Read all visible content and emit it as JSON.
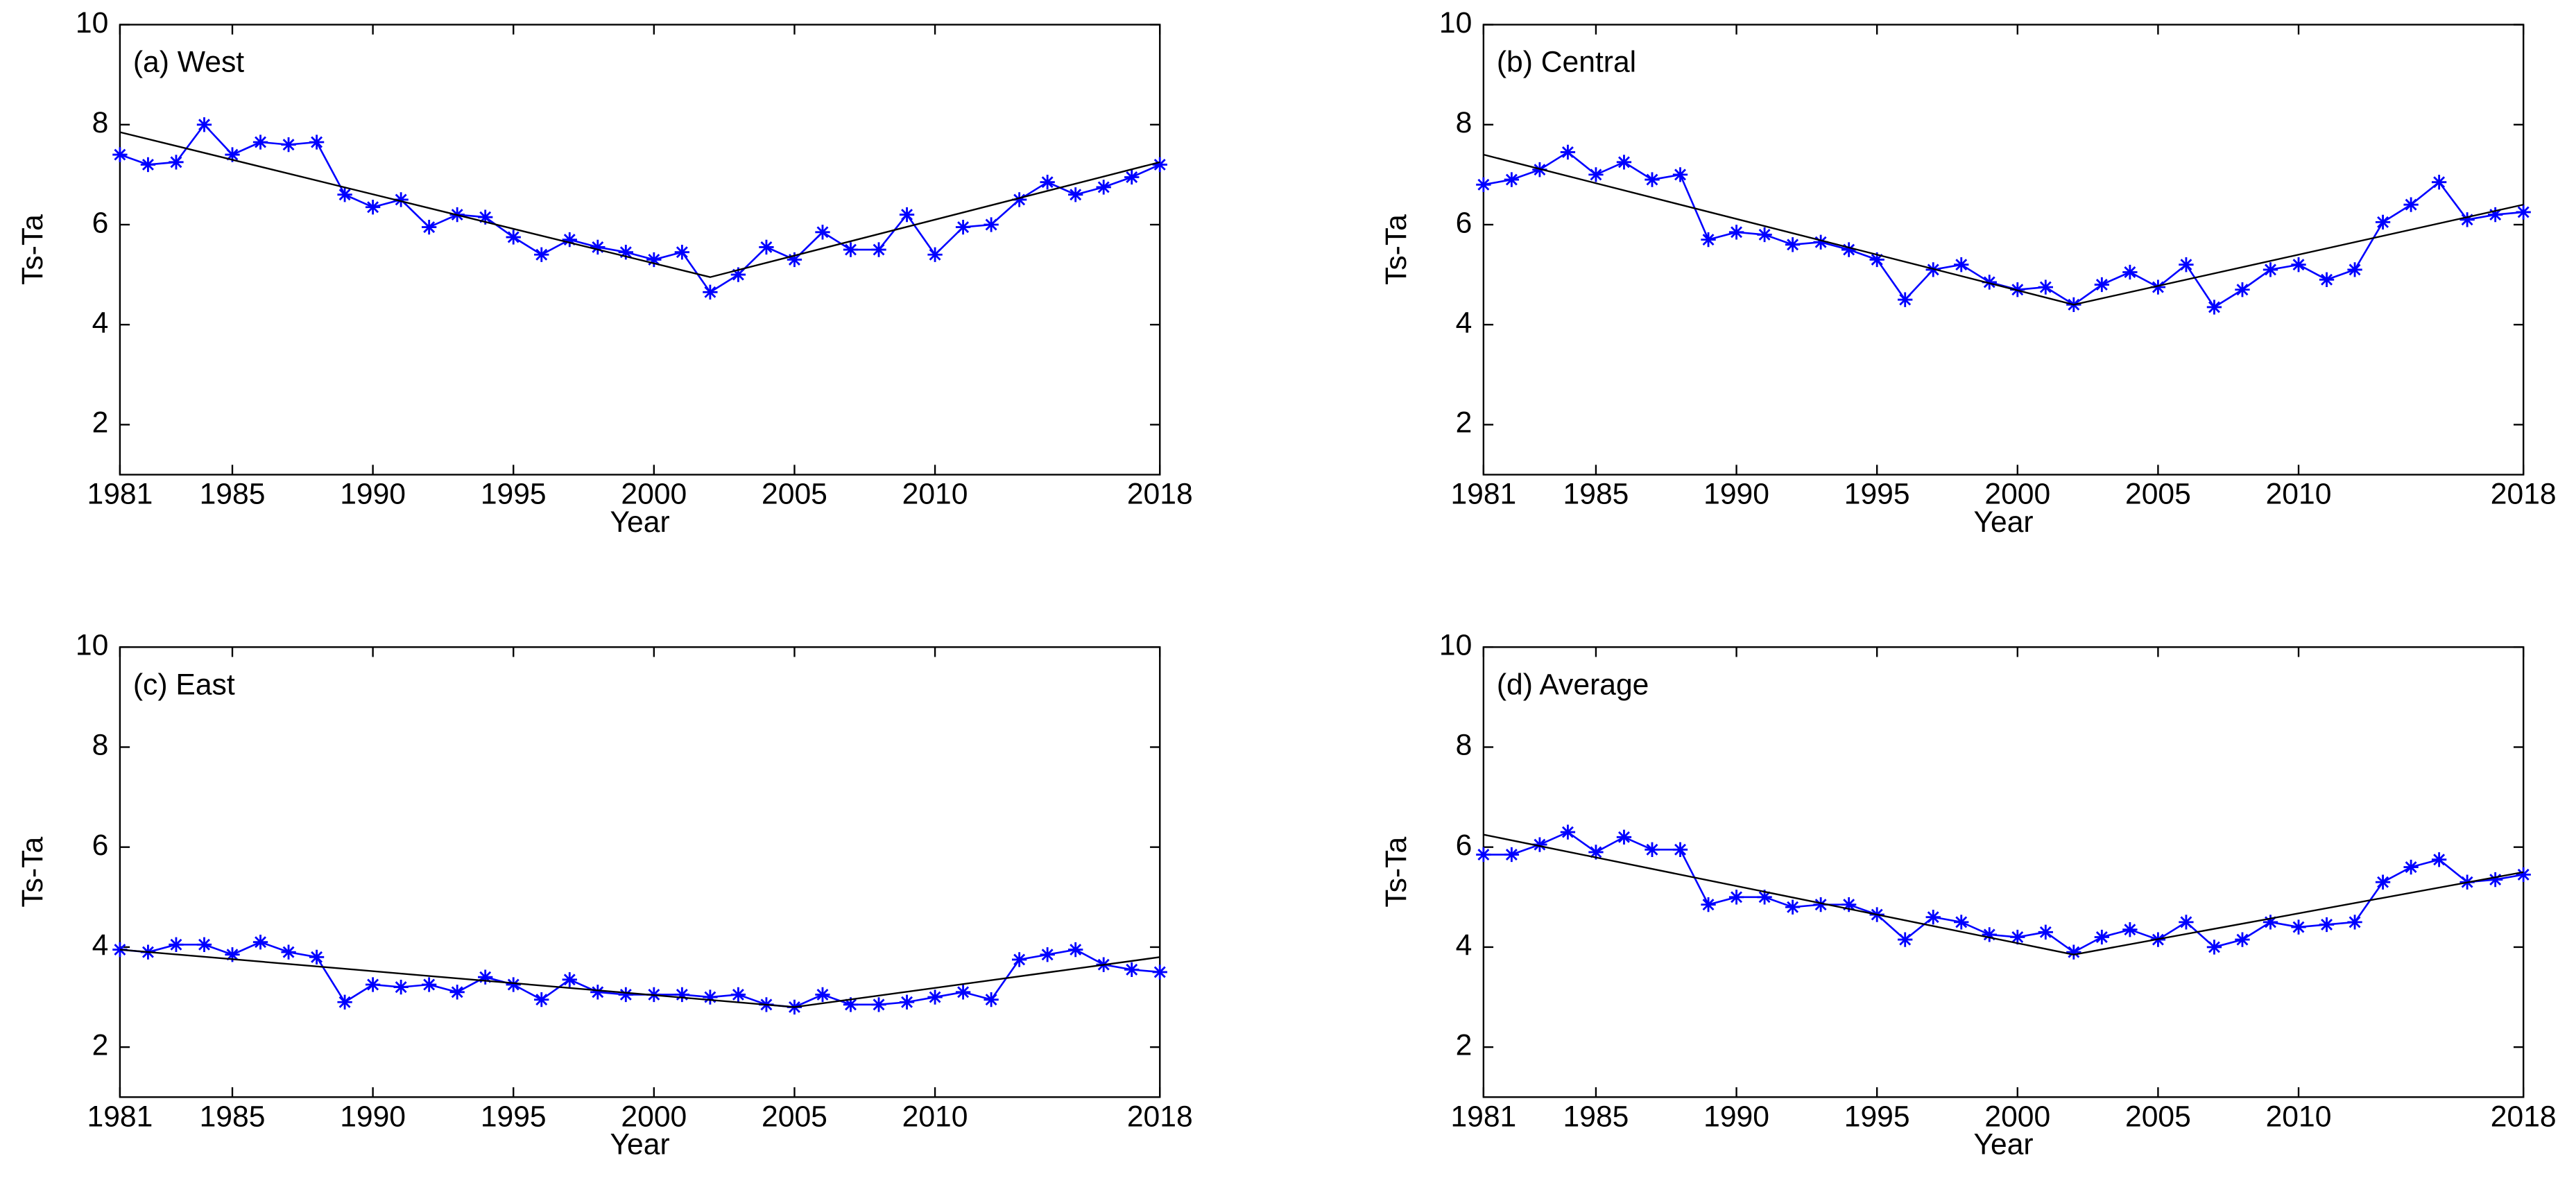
{
  "chart_data": [
    {
      "type": "line",
      "title": "(a) West",
      "xlabel": "Year",
      "ylabel": "Ts-Ta",
      "x": [
        1981,
        1982,
        1983,
        1984,
        1985,
        1986,
        1987,
        1988,
        1989,
        1990,
        1991,
        1992,
        1993,
        1994,
        1995,
        1996,
        1997,
        1998,
        1999,
        2000,
        2001,
        2002,
        2003,
        2004,
        2005,
        2006,
        2007,
        2008,
        2009,
        2010,
        2011,
        2012,
        2013,
        2014,
        2015,
        2016,
        2017,
        2018
      ],
      "series": [
        {
          "color": "#0000ff",
          "marker": "star",
          "values": [
            7.4,
            7.2,
            7.25,
            8.0,
            7.4,
            7.65,
            7.6,
            7.65,
            6.6,
            6.35,
            6.5,
            5.95,
            6.2,
            6.15,
            5.75,
            5.4,
            5.7,
            5.55,
            5.45,
            5.3,
            5.45,
            4.65,
            5.0,
            5.55,
            5.3,
            5.85,
            5.5,
            5.5,
            6.2,
            5.4,
            5.95,
            6.0,
            6.5,
            6.85,
            6.6,
            6.75,
            6.95,
            7.2
          ]
        },
        {
          "color": "#000000",
          "x": [
            1981,
            2002,
            2018
          ],
          "values": [
            7.85,
            4.95,
            7.25
          ]
        }
      ],
      "xlim": [
        1981,
        2018
      ],
      "xticks": [
        1981,
        1985,
        1990,
        1995,
        2000,
        2005,
        2010,
        2018
      ],
      "ylim": [
        1,
        10
      ],
      "yticks": [
        2,
        4,
        6,
        8,
        10
      ]
    },
    {
      "type": "line",
      "title": "(b) Central",
      "xlabel": "Year",
      "ylabel": "Ts-Ta",
      "x": [
        1981,
        1982,
        1983,
        1984,
        1985,
        1986,
        1987,
        1988,
        1989,
        1990,
        1991,
        1992,
        1993,
        1994,
        1995,
        1996,
        1997,
        1998,
        1999,
        2000,
        2001,
        2002,
        2003,
        2004,
        2005,
        2006,
        2007,
        2008,
        2009,
        2010,
        2011,
        2012,
        2013,
        2014,
        2015,
        2016,
        2017,
        2018
      ],
      "series": [
        {
          "color": "#0000ff",
          "marker": "star",
          "values": [
            6.8,
            6.9,
            7.1,
            7.45,
            7.0,
            7.25,
            6.9,
            7.0,
            5.7,
            5.85,
            5.8,
            5.6,
            5.65,
            5.5,
            5.3,
            4.5,
            5.1,
            5.2,
            4.85,
            4.7,
            4.75,
            4.4,
            4.8,
            5.05,
            4.75,
            5.2,
            4.35,
            4.7,
            5.1,
            5.2,
            4.9,
            5.1,
            6.05,
            6.4,
            6.85,
            6.1,
            6.2,
            6.25
          ]
        },
        {
          "color": "#000000",
          "x": [
            1981,
            2002,
            2018
          ],
          "values": [
            7.4,
            4.4,
            6.4
          ]
        }
      ],
      "xlim": [
        1981,
        2018
      ],
      "xticks": [
        1981,
        1985,
        1990,
        1995,
        2000,
        2005,
        2010,
        2018
      ],
      "ylim": [
        1,
        10
      ],
      "yticks": [
        2,
        4,
        6,
        8,
        10
      ]
    },
    {
      "type": "line",
      "title": "(c) East",
      "xlabel": "Year",
      "ylabel": "Ts-Ta",
      "x": [
        1981,
        1982,
        1983,
        1984,
        1985,
        1986,
        1987,
        1988,
        1989,
        1990,
        1991,
        1992,
        1993,
        1994,
        1995,
        1996,
        1997,
        1998,
        1999,
        2000,
        2001,
        2002,
        2003,
        2004,
        2005,
        2006,
        2007,
        2008,
        2009,
        2010,
        2011,
        2012,
        2013,
        2014,
        2015,
        2016,
        2017,
        2018
      ],
      "series": [
        {
          "color": "#0000ff",
          "marker": "star",
          "values": [
            3.95,
            3.9,
            4.05,
            4.05,
            3.85,
            4.1,
            3.9,
            3.8,
            2.9,
            3.25,
            3.2,
            3.25,
            3.1,
            3.4,
            3.25,
            2.95,
            3.35,
            3.1,
            3.05,
            3.05,
            3.05,
            3.0,
            3.05,
            2.85,
            2.8,
            3.05,
            2.85,
            2.85,
            2.9,
            3.0,
            3.1,
            2.95,
            3.75,
            3.85,
            3.95,
            3.65,
            3.55,
            3.5
          ]
        },
        {
          "color": "#000000",
          "x": [
            1981,
            2005,
            2018
          ],
          "values": [
            3.95,
            2.8,
            3.8
          ]
        }
      ],
      "xlim": [
        1981,
        2018
      ],
      "xticks": [
        1981,
        1985,
        1990,
        1995,
        2000,
        2005,
        2010,
        2018
      ],
      "ylim": [
        1,
        10
      ],
      "yticks": [
        2,
        4,
        6,
        8,
        10
      ]
    },
    {
      "type": "line",
      "title": "(d) Average",
      "xlabel": "Year",
      "ylabel": "Ts-Ta",
      "x": [
        1981,
        1982,
        1983,
        1984,
        1985,
        1986,
        1987,
        1988,
        1989,
        1990,
        1991,
        1992,
        1993,
        1994,
        1995,
        1996,
        1997,
        1998,
        1999,
        2000,
        2001,
        2002,
        2003,
        2004,
        2005,
        2006,
        2007,
        2008,
        2009,
        2010,
        2011,
        2012,
        2013,
        2014,
        2015,
        2016,
        2017,
        2018
      ],
      "series": [
        {
          "color": "#0000ff",
          "marker": "star",
          "values": [
            5.85,
            5.85,
            6.05,
            6.3,
            5.9,
            6.2,
            5.95,
            5.95,
            4.85,
            5.0,
            5.0,
            4.8,
            4.85,
            4.85,
            4.65,
            4.15,
            4.6,
            4.5,
            4.25,
            4.2,
            4.3,
            3.9,
            4.2,
            4.35,
            4.15,
            4.5,
            4.0,
            4.15,
            4.5,
            4.4,
            4.45,
            4.5,
            5.3,
            5.6,
            5.75,
            5.3,
            5.35,
            5.45
          ]
        },
        {
          "color": "#000000",
          "x": [
            1981,
            2002,
            2018
          ],
          "values": [
            6.25,
            3.85,
            5.5
          ]
        }
      ],
      "xlim": [
        1981,
        2018
      ],
      "xticks": [
        1981,
        1985,
        1990,
        1995,
        2000,
        2005,
        2010,
        2018
      ],
      "ylim": [
        1,
        10
      ],
      "yticks": [
        2,
        4,
        6,
        8,
        10
      ]
    }
  ]
}
